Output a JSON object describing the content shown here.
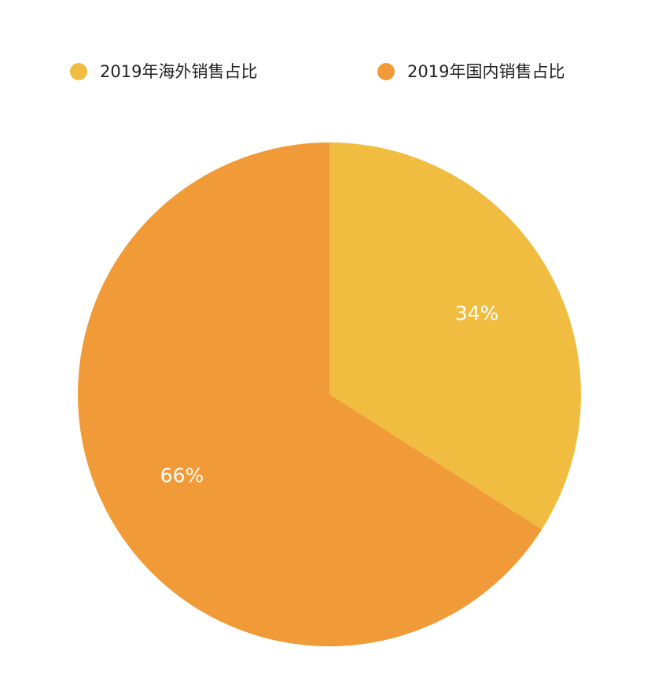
{
  "chart_data": {
    "type": "pie",
    "title": "",
    "legend_position": "top",
    "start_angle": "12 o'clock, clockwise",
    "slices": [
      {
        "name": "2019年海外销售占比",
        "value": 34,
        "label": "34%",
        "color": "#F0BD41"
      },
      {
        "name": "2019年国内销售占比",
        "value": 66,
        "label": "66%",
        "color": "#F19A38"
      }
    ]
  }
}
